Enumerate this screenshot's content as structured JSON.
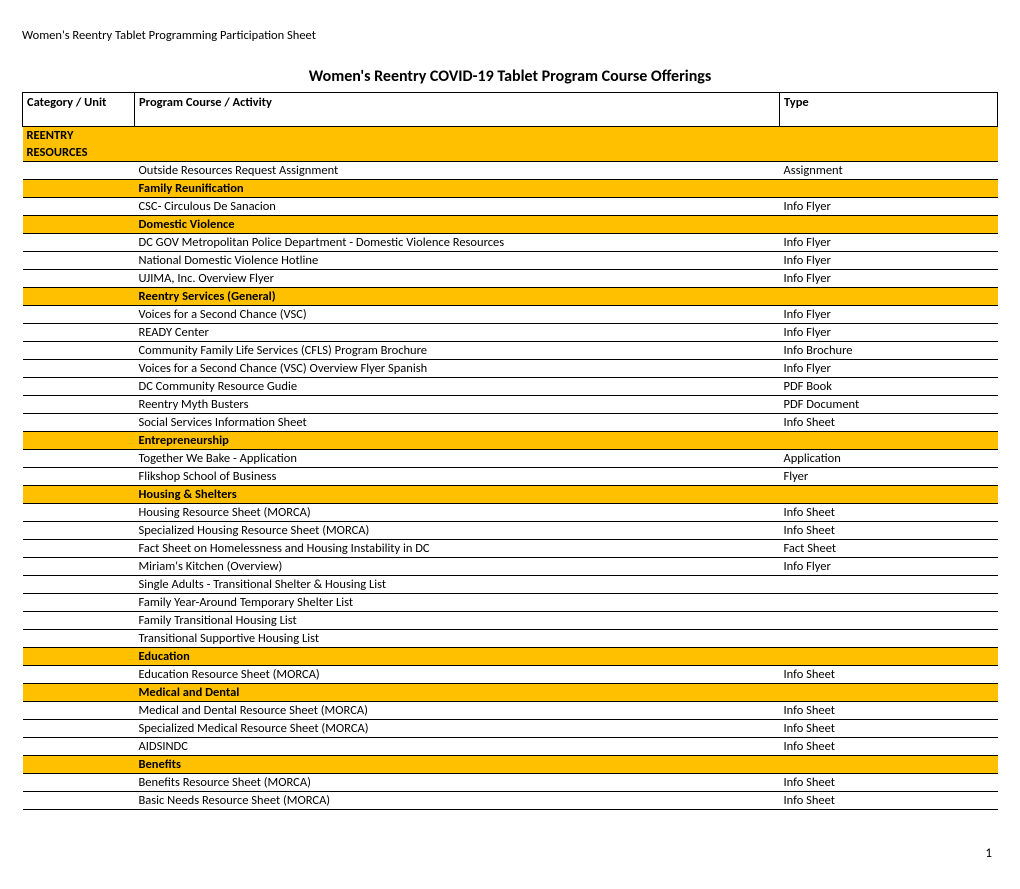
{
  "page_header": "Women's Reentry Tablet Programming Participation Sheet",
  "title": "Women's Reentry COVID-19 Tablet Program Course Offerings",
  "columns": {
    "cat": "Category / Unit",
    "course": "Program Course / Activity",
    "type": "Type"
  },
  "colors": {
    "section_bg": "#ffc000",
    "border": "#000000",
    "background": "#ffffff"
  },
  "rows": [
    {
      "kind": "section",
      "cat": "REENTRY RESOURCES",
      "course": "",
      "type": ""
    },
    {
      "kind": "data",
      "cat": "",
      "course": "Outside Resources Request Assignment",
      "type": "Assignment"
    },
    {
      "kind": "section",
      "cat": "",
      "course": "Family Reunification",
      "type": ""
    },
    {
      "kind": "data",
      "cat": "",
      "course": "CSC- Circulous De Sanacion",
      "type": "Info Flyer"
    },
    {
      "kind": "section",
      "cat": "",
      "course": "Domestic Violence",
      "type": ""
    },
    {
      "kind": "data",
      "cat": "",
      "course": "DC GOV Metropolitan Police Department - Domestic Violence Resources",
      "type": "Info Flyer"
    },
    {
      "kind": "data",
      "cat": "",
      "course": "National Domestic Violence Hotline",
      "type": "Info Flyer"
    },
    {
      "kind": "data",
      "cat": "",
      "course": "UJIMA, Inc. Overview Flyer",
      "type": "Info Flyer"
    },
    {
      "kind": "section",
      "cat": "",
      "course": "Reentry Services (General)",
      "type": ""
    },
    {
      "kind": "data",
      "cat": "",
      "course": "Voices for a Second Chance (VSC)",
      "type": "Info Flyer"
    },
    {
      "kind": "data",
      "cat": "",
      "course": "READY Center",
      "type": "Info Flyer"
    },
    {
      "kind": "data",
      "cat": "",
      "course": "Community Family Life Services (CFLS) Program Brochure",
      "type": "Info Brochure"
    },
    {
      "kind": "data",
      "cat": "",
      "course": "Voices for a Second Chance (VSC) Overview Flyer Spanish",
      "type": "Info Flyer"
    },
    {
      "kind": "data",
      "cat": "",
      "course": "DC Community Resource Gudie",
      "type": "PDF Book"
    },
    {
      "kind": "data",
      "cat": "",
      "course": "Reentry Myth Busters",
      "type": "PDF Document"
    },
    {
      "kind": "data",
      "cat": "",
      "course": "Social Services Information Sheet",
      "type": "Info Sheet"
    },
    {
      "kind": "section",
      "cat": "",
      "course": "Entrepreneurship",
      "type": ""
    },
    {
      "kind": "data",
      "cat": "",
      "course": "Together We Bake - Application",
      "type": "Application"
    },
    {
      "kind": "data",
      "cat": "",
      "course": "Flikshop School of Business",
      "type": "Flyer"
    },
    {
      "kind": "section",
      "cat": "",
      "course": "Housing & Shelters",
      "type": ""
    },
    {
      "kind": "data",
      "cat": "",
      "course": "Housing Resource Sheet (MORCA)",
      "type": "Info Sheet"
    },
    {
      "kind": "data",
      "cat": "",
      "course": "Specialized Housing Resource Sheet (MORCA)",
      "type": "Info Sheet"
    },
    {
      "kind": "data",
      "cat": "",
      "course": "Fact Sheet on Homelessness and  Housing Instability in DC",
      "type": "Fact Sheet"
    },
    {
      "kind": "data",
      "cat": "",
      "course": "Miriam's Kitchen (Overview)",
      "type": "Info Flyer"
    },
    {
      "kind": "data",
      "cat": "",
      "course": "Single Adults - Transitional Shelter & Housing List",
      "type": ""
    },
    {
      "kind": "data",
      "cat": "",
      "course": "Family Year-Around Temporary Shelter List",
      "type": ""
    },
    {
      "kind": "data",
      "cat": "",
      "course": "Family Transitional Housing List",
      "type": ""
    },
    {
      "kind": "data",
      "cat": "",
      "course": "Transitional Supportive Housing List",
      "type": ""
    },
    {
      "kind": "section",
      "cat": "",
      "course": "Education",
      "type": ""
    },
    {
      "kind": "data",
      "cat": "",
      "course": "Education Resource Sheet (MORCA)",
      "type": "Info Sheet"
    },
    {
      "kind": "section",
      "cat": "",
      "course": "Medical and Dental",
      "type": ""
    },
    {
      "kind": "data",
      "cat": "",
      "course": "Medical and Dental Resource Sheet (MORCA)",
      "type": "Info Sheet"
    },
    {
      "kind": "data",
      "cat": "",
      "course": "Specialized Medical Resource Sheet (MORCA)",
      "type": "Info Sheet"
    },
    {
      "kind": "data",
      "cat": "",
      "course": "AIDSINDC",
      "type": "Info Sheet"
    },
    {
      "kind": "section",
      "cat": "",
      "course": "Benefits",
      "type": ""
    },
    {
      "kind": "data",
      "cat": "",
      "course": "Benefits Resource Sheet (MORCA)",
      "type": "Info Sheet"
    },
    {
      "kind": "data",
      "cat": "",
      "course": "Basic Needs Resource Sheet (MORCA)",
      "type": "Info Sheet"
    }
  ],
  "page_number": "1"
}
